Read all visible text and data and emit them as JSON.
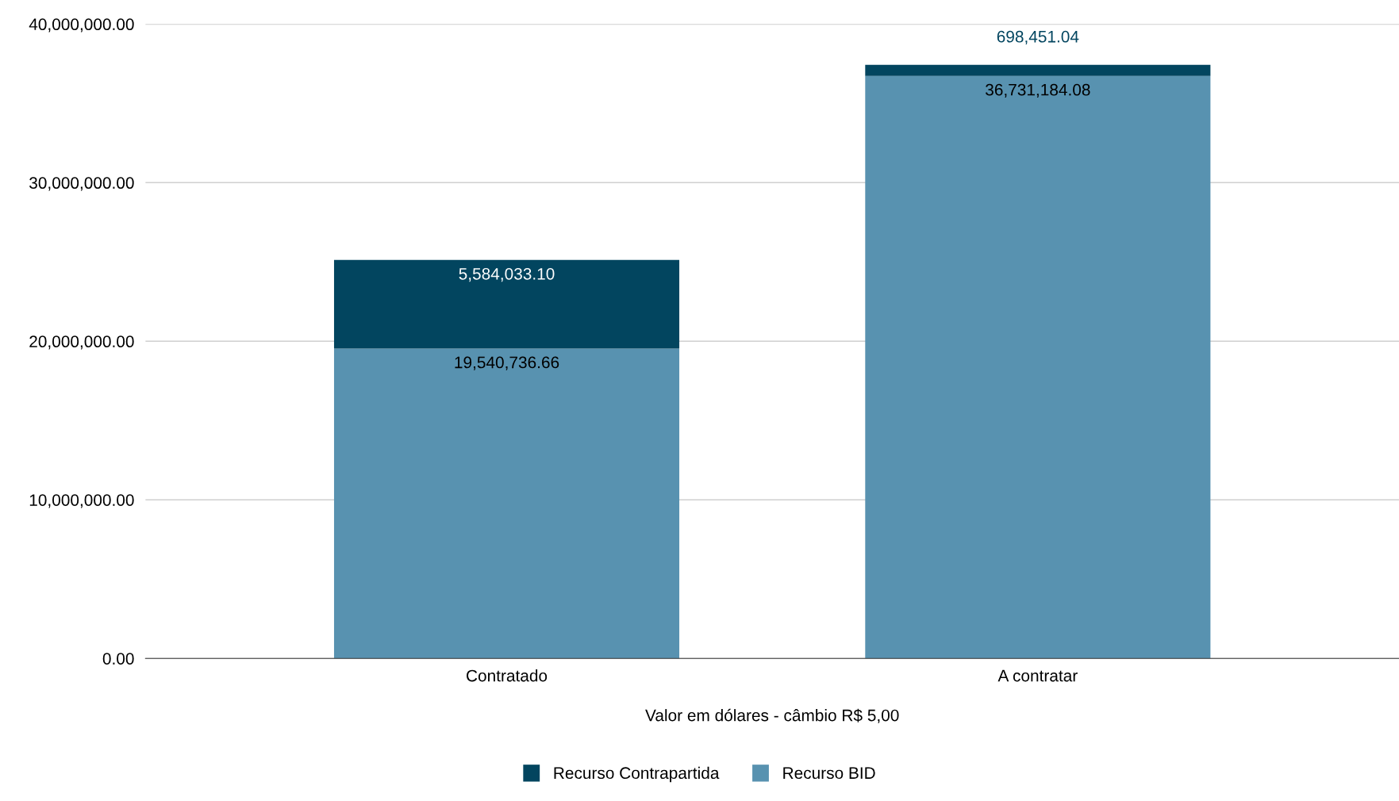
{
  "chart_data": {
    "type": "bar",
    "stacked": true,
    "categories": [
      "Contratado",
      "A contratar"
    ],
    "series": [
      {
        "name": "Recurso BID",
        "color": "#5892b0",
        "values": [
          19540736.66,
          36731184.08
        ],
        "value_labels": [
          "19,540,736.66",
          "36,731,184.08"
        ]
      },
      {
        "name": "Recurso Contrapartida",
        "color": "#02455f",
        "values": [
          5584033.1,
          698451.04
        ],
        "value_labels": [
          "5,584,033.10",
          "698,451.04"
        ]
      }
    ],
    "xlabel": "Valor em dólares - câmbio R$ 5,00",
    "ylim": [
      0,
      40000000
    ],
    "yticks": [
      {
        "value": 0,
        "label": "0.00"
      },
      {
        "value": 10000000,
        "label": "10,000,000.00"
      },
      {
        "value": 20000000,
        "label": "20,000,000.00"
      },
      {
        "value": 30000000,
        "label": "30,000,000.00"
      },
      {
        "value": 40000000,
        "label": "40,000,000.00"
      }
    ],
    "grid": "y",
    "legend": "bottom"
  }
}
